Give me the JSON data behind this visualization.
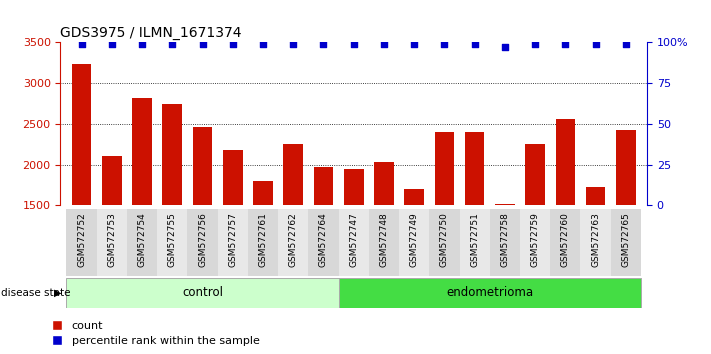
{
  "title": "GDS3975 / ILMN_1671374",
  "samples": [
    "GSM572752",
    "GSM572753",
    "GSM572754",
    "GSM572755",
    "GSM572756",
    "GSM572757",
    "GSM572761",
    "GSM572762",
    "GSM572764",
    "GSM572747",
    "GSM572748",
    "GSM572749",
    "GSM572750",
    "GSM572751",
    "GSM572758",
    "GSM572759",
    "GSM572760",
    "GSM572763",
    "GSM572765"
  ],
  "counts": [
    3240,
    2110,
    2820,
    2740,
    2460,
    2180,
    1800,
    2250,
    1970,
    1950,
    2030,
    1700,
    2400,
    2400,
    1520,
    2250,
    2560,
    1730,
    2420
  ],
  "percentiles": [
    99,
    99,
    99,
    99,
    99,
    99,
    99,
    99,
    99,
    99,
    99,
    99,
    99,
    99,
    97,
    99,
    99,
    99,
    99
  ],
  "groups": [
    "control",
    "control",
    "control",
    "control",
    "control",
    "control",
    "control",
    "control",
    "control",
    "endometrioma",
    "endometrioma",
    "endometrioma",
    "endometrioma",
    "endometrioma",
    "endometrioma",
    "endometrioma",
    "endometrioma",
    "endometrioma",
    "endometrioma"
  ],
  "control_color": "#ccffcc",
  "endometrioma_color": "#44dd44",
  "bar_color": "#cc1100",
  "dot_color": "#0000cc",
  "ylim_left": [
    1500,
    3500
  ],
  "ylim_right": [
    0,
    100
  ],
  "yticks_left": [
    1500,
    2000,
    2500,
    3000,
    3500
  ],
  "yticks_right": [
    0,
    25,
    50,
    75,
    100
  ],
  "ytick_labels_right": [
    "0",
    "25",
    "50",
    "75",
    "100%"
  ],
  "grid_values": [
    2000,
    2500,
    3000
  ],
  "bar_width": 0.65
}
